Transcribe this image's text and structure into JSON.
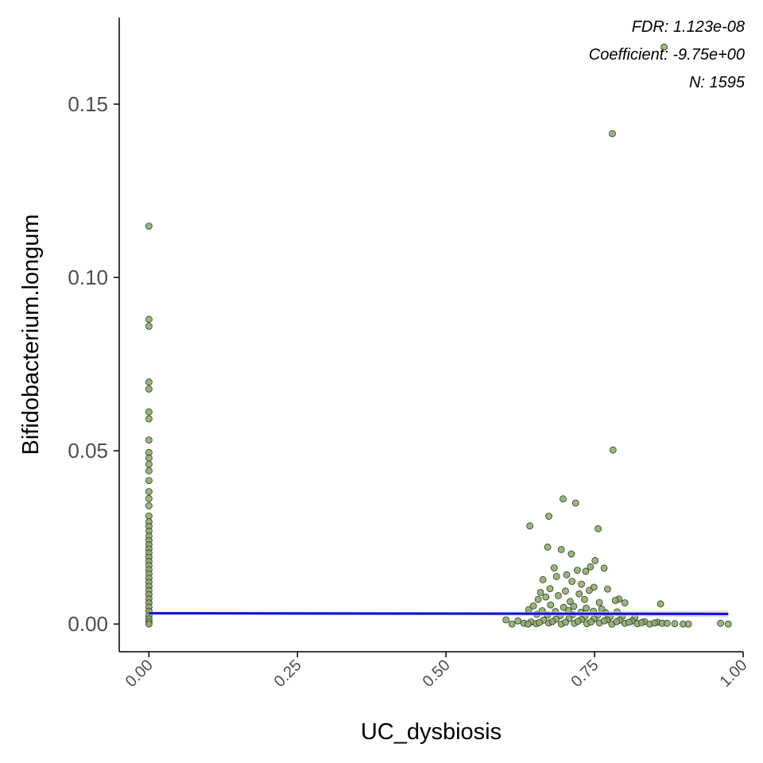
{
  "chart_data": {
    "type": "scatter",
    "xlabel": "UC_dysbiosis",
    "ylabel": "Bifidobacterium.longum",
    "xlim": [
      -0.05,
      1.0
    ],
    "ylim": [
      -0.008,
      0.175
    ],
    "x_ticks": [
      0.0,
      0.25,
      0.5,
      0.75,
      1.0
    ],
    "x_tick_labels": [
      "0.00",
      "0.25",
      "0.50",
      "0.75",
      "1.00"
    ],
    "y_ticks": [
      0.0,
      0.05,
      0.1,
      0.15
    ],
    "y_tick_labels": [
      "0.00",
      "0.05",
      "0.10",
      "0.15"
    ],
    "grid": false,
    "point_color": "#8aa66b",
    "point_edge_color": "#2e3d1a",
    "line_color": "#1010e0",
    "band_color": "#c8c8cc",
    "annotations": [
      "FDR: 1.123e-08",
      "Coefficient: -9.75e+00",
      "N: 1595"
    ],
    "fit_line": {
      "x": [
        0.0,
        0.975
      ],
      "y": [
        0.0031,
        0.0029
      ]
    },
    "points": [
      [
        0.0,
        0.1148
      ],
      [
        0.0,
        0.0879
      ],
      [
        0.0,
        0.0859
      ],
      [
        0.0,
        0.0698
      ],
      [
        0.0,
        0.0678
      ],
      [
        0.0,
        0.0612
      ],
      [
        0.0,
        0.0592
      ],
      [
        0.0,
        0.0531
      ],
      [
        0.0,
        0.0495
      ],
      [
        0.0,
        0.0479
      ],
      [
        0.0,
        0.0461
      ],
      [
        0.0,
        0.0442
      ],
      [
        0.0,
        0.0414
      ],
      [
        0.0,
        0.0382
      ],
      [
        0.0,
        0.0362
      ],
      [
        0.0,
        0.0341
      ],
      [
        0.0,
        0.0312
      ],
      [
        0.0,
        0.0295
      ],
      [
        0.0,
        0.0282
      ],
      [
        0.0,
        0.0268
      ],
      [
        0.0,
        0.0254
      ],
      [
        0.0,
        0.0241
      ],
      [
        0.0,
        0.0229
      ],
      [
        0.0,
        0.0217
      ],
      [
        0.0,
        0.0205
      ],
      [
        0.0,
        0.0193
      ],
      [
        0.0,
        0.0181
      ],
      [
        0.0,
        0.0169
      ],
      [
        0.0,
        0.0157
      ],
      [
        0.0,
        0.0145
      ],
      [
        0.0,
        0.0133
      ],
      [
        0.0,
        0.0121
      ],
      [
        0.0,
        0.0109
      ],
      [
        0.0,
        0.0097
      ],
      [
        0.0,
        0.0085
      ],
      [
        0.0,
        0.0073
      ],
      [
        0.0,
        0.0061
      ],
      [
        0.0,
        0.0049
      ],
      [
        0.0,
        0.0037
      ],
      [
        0.0,
        0.0025
      ],
      [
        0.0,
        0.0015
      ],
      [
        0.0,
        0.0006
      ],
      [
        0.0,
        0.0
      ],
      [
        0.867,
        0.1665
      ],
      [
        0.78,
        0.1415
      ],
      [
        0.781,
        0.0502
      ],
      [
        0.697,
        0.0361
      ],
      [
        0.718,
        0.0349
      ],
      [
        0.673,
        0.0311
      ],
      [
        0.756,
        0.0275
      ],
      [
        0.641,
        0.0283
      ],
      [
        0.671,
        0.0222
      ],
      [
        0.694,
        0.0215
      ],
      [
        0.711,
        0.0202
      ],
      [
        0.751,
        0.0183
      ],
      [
        0.743,
        0.0165
      ],
      [
        0.766,
        0.0161
      ],
      [
        0.735,
        0.0152
      ],
      [
        0.721,
        0.0155
      ],
      [
        0.682,
        0.0162
      ],
      [
        0.703,
        0.0142
      ],
      [
        0.663,
        0.0128
      ],
      [
        0.686,
        0.0137
      ],
      [
        0.712,
        0.0123
      ],
      [
        0.728,
        0.0115
      ],
      [
        0.749,
        0.0106
      ],
      [
        0.701,
        0.0095
      ],
      [
        0.675,
        0.0102
      ],
      [
        0.659,
        0.0091
      ],
      [
        0.724,
        0.0087
      ],
      [
        0.741,
        0.0097
      ],
      [
        0.772,
        0.0101
      ],
      [
        0.791,
        0.0072
      ],
      [
        0.785,
        0.0068
      ],
      [
        0.801,
        0.0061
      ],
      [
        0.861,
        0.0058
      ],
      [
        0.655,
        0.0071
      ],
      [
        0.668,
        0.0078
      ],
      [
        0.689,
        0.0082
      ],
      [
        0.709,
        0.0065
      ],
      [
        0.733,
        0.0071
      ],
      [
        0.758,
        0.0062
      ],
      [
        0.647,
        0.0052
      ],
      [
        0.676,
        0.0055
      ],
      [
        0.698,
        0.0048
      ],
      [
        0.715,
        0.0051
      ],
      [
        0.736,
        0.0046
      ],
      [
        0.762,
        0.0043
      ],
      [
        0.639,
        0.0041
      ],
      [
        0.662,
        0.0038
      ],
      [
        0.684,
        0.0036
      ],
      [
        0.706,
        0.0039
      ],
      [
        0.727,
        0.0034
      ],
      [
        0.748,
        0.0037
      ],
      [
        0.769,
        0.0032
      ],
      [
        0.788,
        0.0035
      ],
      [
        0.653,
        0.0028
      ],
      [
        0.671,
        0.0026
      ],
      [
        0.692,
        0.0024
      ],
      [
        0.713,
        0.0027
      ],
      [
        0.734,
        0.0022
      ],
      [
        0.755,
        0.0025
      ],
      [
        0.776,
        0.0021
      ],
      [
        0.797,
        0.0023
      ],
      [
        0.818,
        0.0019
      ],
      [
        0.601,
        0.0012
      ],
      [
        0.621,
        0.0009
      ],
      [
        0.643,
        0.0006
      ],
      [
        0.664,
        0.0011
      ],
      [
        0.685,
        0.0014
      ],
      [
        0.707,
        0.0016
      ],
      [
        0.728,
        0.0013
      ],
      [
        0.749,
        0.0015
      ],
      [
        0.771,
        0.0012
      ],
      [
        0.792,
        0.0011
      ],
      [
        0.813,
        0.0009
      ],
      [
        0.834,
        0.0007
      ],
      [
        0.856,
        0.0005
      ],
      [
        0.631,
        0.0002
      ],
      [
        0.652,
        0.0001
      ],
      [
        0.673,
        0.0003
      ],
      [
        0.694,
        0.0
      ],
      [
        0.716,
        0.0002
      ],
      [
        0.737,
        0.0001
      ],
      [
        0.758,
        0.0003
      ],
      [
        0.779,
        0.0
      ],
      [
        0.801,
        0.0002
      ],
      [
        0.822,
        0.0001
      ],
      [
        0.843,
        0.0
      ],
      [
        0.864,
        0.0002
      ],
      [
        0.885,
        0.0001
      ],
      [
        0.899,
        0.0
      ],
      [
        0.908,
        0.0
      ],
      [
        0.962,
        0.0002
      ],
      [
        0.975,
        0.0
      ],
      [
        0.611,
        0.0
      ],
      [
        0.638,
        0.0
      ],
      [
        0.657,
        0.0004
      ],
      [
        0.679,
        0.0007
      ],
      [
        0.701,
        0.0005
      ],
      [
        0.722,
        0.0008
      ],
      [
        0.744,
        0.0006
      ],
      [
        0.766,
        0.0009
      ],
      [
        0.787,
        0.0007
      ],
      [
        0.808,
        0.0005
      ],
      [
        0.829,
        0.0004
      ],
      [
        0.851,
        0.0003
      ],
      [
        0.872,
        0.0002
      ]
    ]
  }
}
